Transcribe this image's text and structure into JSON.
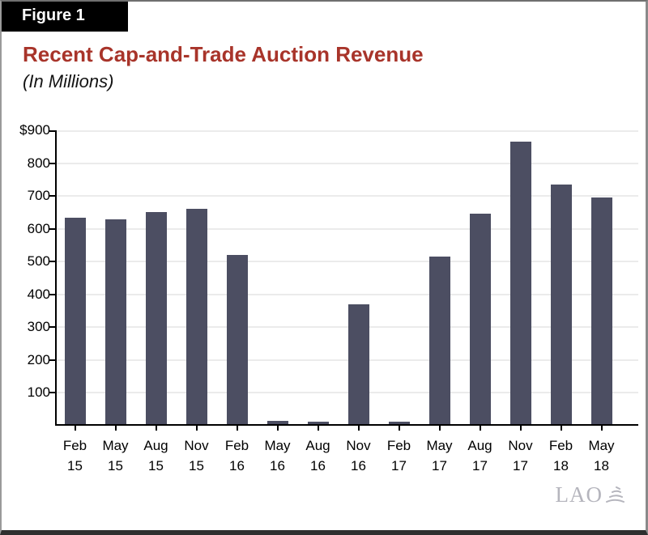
{
  "figure_label": "Figure 1",
  "title": "Recent Cap-and-Trade Auction Revenue",
  "subtitle": "(In Millions)",
  "footer": {
    "logo_text": "LAO"
  },
  "colors": {
    "bar": "#4c4e62",
    "title": "#a8342a",
    "gridline": "#ebebeb",
    "axis": "#000000",
    "logo": "#b5b5bd"
  },
  "chart_data": {
    "type": "bar",
    "categories": [
      "Feb 15",
      "May 15",
      "Aug 15",
      "Nov 15",
      "Feb 16",
      "May 16",
      "Aug 16",
      "Nov 16",
      "Feb 17",
      "May 17",
      "Aug 17",
      "Nov 17",
      "Feb 18",
      "May 18"
    ],
    "values": [
      629,
      625,
      647,
      657,
      516,
      10,
      8,
      365,
      8,
      511,
      642,
      861,
      730,
      690
    ],
    "title": "Recent Cap-and-Trade Auction Revenue",
    "subtitle": "(In Millions)",
    "xlabel": "",
    "ylabel": "",
    "ylim": [
      0,
      900
    ],
    "ytick_interval": 100,
    "ytick_labels": [
      "$900",
      "800",
      "700",
      "600",
      "500",
      "400",
      "300",
      "200",
      "100"
    ],
    "grid": true,
    "legend": false
  }
}
